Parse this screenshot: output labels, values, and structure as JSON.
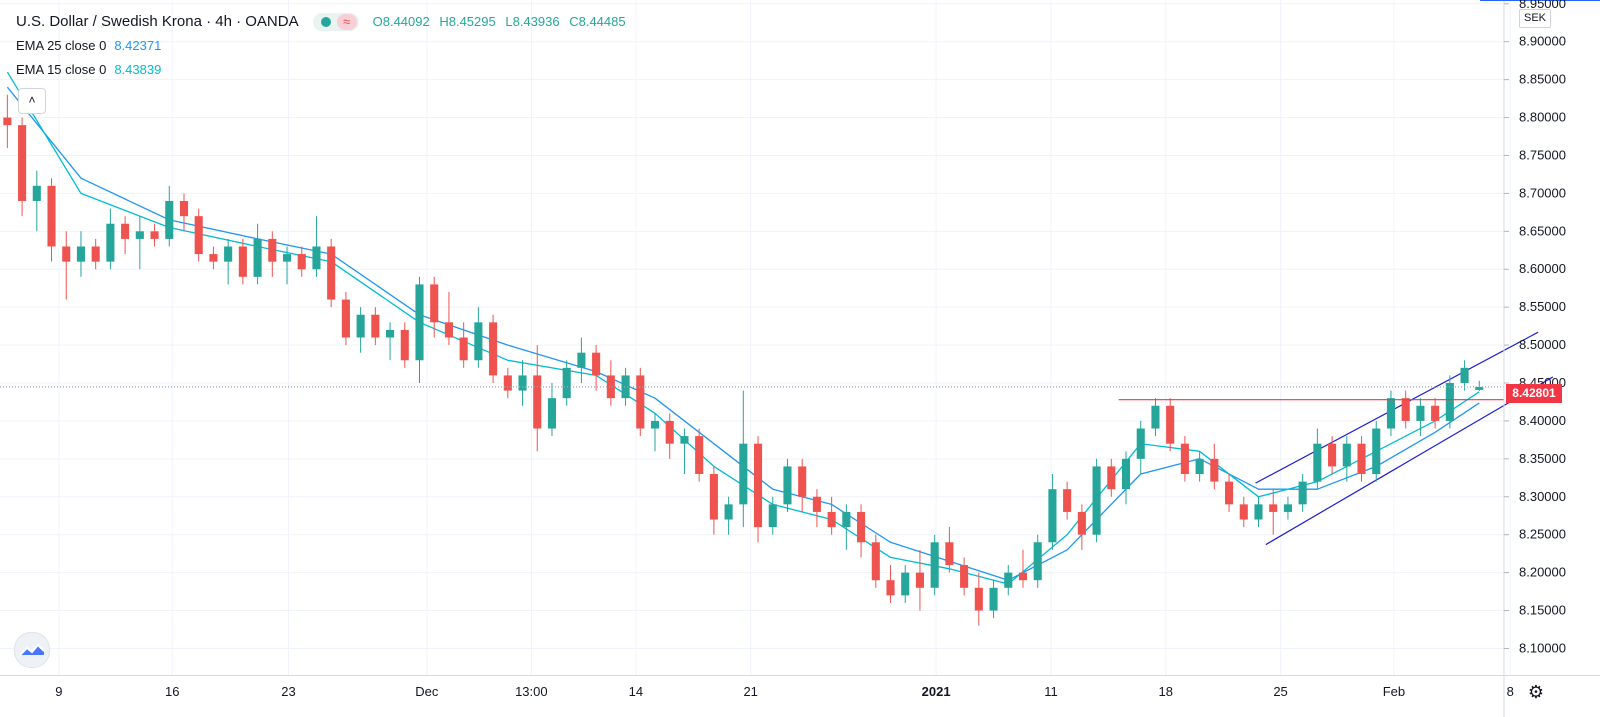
{
  "header": {
    "title": "U.S. Dollar / Swedish Krona · 4h · OANDA",
    "ohlc": {
      "open": "O8.44092",
      "high": "H8.45295",
      "low": "L8.43936",
      "close": "C8.44485"
    }
  },
  "indicators": [
    {
      "label": "EMA 25 close 0",
      "value": "8.42371",
      "color": "#2196f3"
    },
    {
      "label": "EMA 15 close 0",
      "value": "8.43839",
      "color": "#00bcd4"
    }
  ],
  "price_axis": {
    "currency": "SEK",
    "marked_price": "8.42801"
  },
  "colors": {
    "up": "#26a69a",
    "down": "#ef5350",
    "channel": "#1f1fd6",
    "horizontal_level": "#f23645",
    "dotted_price_line": "#9aa5b8"
  },
  "icons": {
    "collapse": "chevron-up-icon",
    "logo": "tradingview-logo-icon",
    "settings": "gear-icon",
    "indicator_toggle": "wave-icon"
  },
  "chart_data": {
    "type": "candlestick",
    "x_axis_type": "time",
    "x_range": [
      -0.5,
      101
    ],
    "xlabel": "",
    "ylabel": "",
    "ylim": [
      8.065,
      8.955
    ],
    "y_ticks": [
      8.95,
      8.9,
      8.85,
      8.8,
      8.75,
      8.7,
      8.65,
      8.6,
      8.55,
      8.5,
      8.45,
      8.4,
      8.35,
      8.3,
      8.25,
      8.2,
      8.15,
      8.1
    ],
    "y_tick_labels": [
      "8.95000",
      "8.90000",
      "8.85000",
      "8.80000",
      "8.75000",
      "8.70000",
      "8.65000",
      "8.60000",
      "8.55000",
      "8.50000",
      "8.45000",
      "8.40000",
      "8.35000",
      "8.30000",
      "8.25000",
      "8.20000",
      "8.15000",
      "8.10000"
    ],
    "x_ticks": [
      {
        "label": "9",
        "x": 3.5
      },
      {
        "label": "16",
        "x": 11.2
      },
      {
        "label": "23",
        "x": 19.1
      },
      {
        "label": "Dec",
        "x": 28.5
      },
      {
        "label": "13:00",
        "x": 35.6
      },
      {
        "label": "14",
        "x": 42.7
      },
      {
        "label": "21",
        "x": 50.5
      },
      {
        "label": "2021",
        "x": 63.1,
        "bold": true
      },
      {
        "label": "11",
        "x": 70.9
      },
      {
        "label": "18",
        "x": 78.7
      },
      {
        "label": "25",
        "x": 86.5
      },
      {
        "label": "Feb",
        "x": 94.2
      },
      {
        "label": "8",
        "x": 102.1
      }
    ],
    "candles": [
      {
        "x": 0,
        "o": 8.8,
        "h": 8.83,
        "l": 8.76,
        "c": 8.79
      },
      {
        "x": 1,
        "o": 8.79,
        "h": 8.8,
        "l": 8.67,
        "c": 8.69
      },
      {
        "x": 2,
        "o": 8.69,
        "h": 8.73,
        "l": 8.65,
        "c": 8.71
      },
      {
        "x": 3,
        "o": 8.71,
        "h": 8.72,
        "l": 8.61,
        "c": 8.63
      },
      {
        "x": 4,
        "o": 8.63,
        "h": 8.65,
        "l": 8.56,
        "c": 8.61
      },
      {
        "x": 5,
        "o": 8.61,
        "h": 8.65,
        "l": 8.59,
        "c": 8.63
      },
      {
        "x": 6,
        "o": 8.63,
        "h": 8.64,
        "l": 8.6,
        "c": 8.61
      },
      {
        "x": 7,
        "o": 8.61,
        "h": 8.68,
        "l": 8.6,
        "c": 8.66
      },
      {
        "x": 8,
        "o": 8.66,
        "h": 8.67,
        "l": 8.62,
        "c": 8.64
      },
      {
        "x": 9,
        "o": 8.64,
        "h": 8.67,
        "l": 8.6,
        "c": 8.65
      },
      {
        "x": 10,
        "o": 8.65,
        "h": 8.66,
        "l": 8.63,
        "c": 8.64
      },
      {
        "x": 11,
        "o": 8.64,
        "h": 8.71,
        "l": 8.63,
        "c": 8.69
      },
      {
        "x": 12,
        "o": 8.69,
        "h": 8.7,
        "l": 8.65,
        "c": 8.67
      },
      {
        "x": 13,
        "o": 8.67,
        "h": 8.68,
        "l": 8.61,
        "c": 8.62
      },
      {
        "x": 14,
        "o": 8.62,
        "h": 8.63,
        "l": 8.6,
        "c": 8.61
      },
      {
        "x": 15,
        "o": 8.61,
        "h": 8.64,
        "l": 8.58,
        "c": 8.63
      },
      {
        "x": 16,
        "o": 8.63,
        "h": 8.64,
        "l": 8.58,
        "c": 8.59
      },
      {
        "x": 17,
        "o": 8.59,
        "h": 8.66,
        "l": 8.58,
        "c": 8.64
      },
      {
        "x": 18,
        "o": 8.64,
        "h": 8.65,
        "l": 8.59,
        "c": 8.61
      },
      {
        "x": 19,
        "o": 8.61,
        "h": 8.63,
        "l": 8.58,
        "c": 8.62
      },
      {
        "x": 20,
        "o": 8.62,
        "h": 8.63,
        "l": 8.59,
        "c": 8.6
      },
      {
        "x": 21,
        "o": 8.6,
        "h": 8.67,
        "l": 8.59,
        "c": 8.63
      },
      {
        "x": 22,
        "o": 8.63,
        "h": 8.64,
        "l": 8.55,
        "c": 8.56
      },
      {
        "x": 23,
        "o": 8.56,
        "h": 8.57,
        "l": 8.5,
        "c": 8.51
      },
      {
        "x": 24,
        "o": 8.51,
        "h": 8.55,
        "l": 8.49,
        "c": 8.54
      },
      {
        "x": 25,
        "o": 8.54,
        "h": 8.55,
        "l": 8.5,
        "c": 8.51
      },
      {
        "x": 26,
        "o": 8.51,
        "h": 8.53,
        "l": 8.48,
        "c": 8.52
      },
      {
        "x": 27,
        "o": 8.52,
        "h": 8.53,
        "l": 8.47,
        "c": 8.48
      },
      {
        "x": 28,
        "o": 8.48,
        "h": 8.59,
        "l": 8.45,
        "c": 8.58
      },
      {
        "x": 29,
        "o": 8.58,
        "h": 8.59,
        "l": 8.51,
        "c": 8.53
      },
      {
        "x": 30,
        "o": 8.53,
        "h": 8.57,
        "l": 8.5,
        "c": 8.51
      },
      {
        "x": 31,
        "o": 8.51,
        "h": 8.53,
        "l": 8.47,
        "c": 8.48
      },
      {
        "x": 32,
        "o": 8.48,
        "h": 8.55,
        "l": 8.47,
        "c": 8.53
      },
      {
        "x": 33,
        "o": 8.53,
        "h": 8.54,
        "l": 8.45,
        "c": 8.46
      },
      {
        "x": 34,
        "o": 8.46,
        "h": 8.47,
        "l": 8.43,
        "c": 8.44
      },
      {
        "x": 35,
        "o": 8.44,
        "h": 8.48,
        "l": 8.42,
        "c": 8.46
      },
      {
        "x": 36,
        "o": 8.46,
        "h": 8.5,
        "l": 8.36,
        "c": 8.39
      },
      {
        "x": 37,
        "o": 8.39,
        "h": 8.45,
        "l": 8.38,
        "c": 8.43
      },
      {
        "x": 38,
        "o": 8.43,
        "h": 8.48,
        "l": 8.42,
        "c": 8.47
      },
      {
        "x": 39,
        "o": 8.47,
        "h": 8.51,
        "l": 8.45,
        "c": 8.49
      },
      {
        "x": 40,
        "o": 8.49,
        "h": 8.5,
        "l": 8.44,
        "c": 8.46
      },
      {
        "x": 41,
        "o": 8.46,
        "h": 8.48,
        "l": 8.42,
        "c": 8.43
      },
      {
        "x": 42,
        "o": 8.43,
        "h": 8.47,
        "l": 8.42,
        "c": 8.46
      },
      {
        "x": 43,
        "o": 8.46,
        "h": 8.47,
        "l": 8.38,
        "c": 8.39
      },
      {
        "x": 44,
        "o": 8.39,
        "h": 8.41,
        "l": 8.36,
        "c": 8.4
      },
      {
        "x": 45,
        "o": 8.4,
        "h": 8.41,
        "l": 8.35,
        "c": 8.37
      },
      {
        "x": 46,
        "o": 8.37,
        "h": 8.39,
        "l": 8.33,
        "c": 8.38
      },
      {
        "x": 47,
        "o": 8.38,
        "h": 8.39,
        "l": 8.32,
        "c": 8.33
      },
      {
        "x": 48,
        "o": 8.33,
        "h": 8.34,
        "l": 8.25,
        "c": 8.27
      },
      {
        "x": 49,
        "o": 8.27,
        "h": 8.3,
        "l": 8.25,
        "c": 8.29
      },
      {
        "x": 50,
        "o": 8.29,
        "h": 8.44,
        "l": 8.26,
        "c": 8.37
      },
      {
        "x": 51,
        "o": 8.37,
        "h": 8.38,
        "l": 8.24,
        "c": 8.26
      },
      {
        "x": 52,
        "o": 8.26,
        "h": 8.3,
        "l": 8.25,
        "c": 8.29
      },
      {
        "x": 53,
        "o": 8.29,
        "h": 8.35,
        "l": 8.28,
        "c": 8.34
      },
      {
        "x": 54,
        "o": 8.34,
        "h": 8.35,
        "l": 8.28,
        "c": 8.3
      },
      {
        "x": 55,
        "o": 8.3,
        "h": 8.31,
        "l": 8.26,
        "c": 8.28
      },
      {
        "x": 56,
        "o": 8.28,
        "h": 8.3,
        "l": 8.25,
        "c": 8.26
      },
      {
        "x": 57,
        "o": 8.26,
        "h": 8.29,
        "l": 8.23,
        "c": 8.28
      },
      {
        "x": 58,
        "o": 8.28,
        "h": 8.29,
        "l": 8.22,
        "c": 8.24
      },
      {
        "x": 59,
        "o": 8.24,
        "h": 8.25,
        "l": 8.18,
        "c": 8.19
      },
      {
        "x": 60,
        "o": 8.19,
        "h": 8.21,
        "l": 8.16,
        "c": 8.17
      },
      {
        "x": 61,
        "o": 8.17,
        "h": 8.21,
        "l": 8.16,
        "c": 8.2
      },
      {
        "x": 62,
        "o": 8.2,
        "h": 8.23,
        "l": 8.15,
        "c": 8.18
      },
      {
        "x": 63,
        "o": 8.18,
        "h": 8.25,
        "l": 8.17,
        "c": 8.24
      },
      {
        "x": 64,
        "o": 8.24,
        "h": 8.26,
        "l": 8.2,
        "c": 8.21
      },
      {
        "x": 65,
        "o": 8.21,
        "h": 8.22,
        "l": 8.17,
        "c": 8.18
      },
      {
        "x": 66,
        "o": 8.18,
        "h": 8.2,
        "l": 8.13,
        "c": 8.15
      },
      {
        "x": 67,
        "o": 8.15,
        "h": 8.19,
        "l": 8.14,
        "c": 8.18
      },
      {
        "x": 68,
        "o": 8.18,
        "h": 8.21,
        "l": 8.17,
        "c": 8.2
      },
      {
        "x": 69,
        "o": 8.2,
        "h": 8.23,
        "l": 8.18,
        "c": 8.19
      },
      {
        "x": 70,
        "o": 8.19,
        "h": 8.25,
        "l": 8.18,
        "c": 8.24
      },
      {
        "x": 71,
        "o": 8.24,
        "h": 8.33,
        "l": 8.23,
        "c": 8.31
      },
      {
        "x": 72,
        "o": 8.31,
        "h": 8.32,
        "l": 8.27,
        "c": 8.28
      },
      {
        "x": 73,
        "o": 8.28,
        "h": 8.29,
        "l": 8.23,
        "c": 8.25
      },
      {
        "x": 74,
        "o": 8.25,
        "h": 8.35,
        "l": 8.24,
        "c": 8.34
      },
      {
        "x": 75,
        "o": 8.34,
        "h": 8.35,
        "l": 8.3,
        "c": 8.31
      },
      {
        "x": 76,
        "o": 8.31,
        "h": 8.36,
        "l": 8.29,
        "c": 8.35
      },
      {
        "x": 77,
        "o": 8.35,
        "h": 8.4,
        "l": 8.33,
        "c": 8.39
      },
      {
        "x": 78,
        "o": 8.39,
        "h": 8.43,
        "l": 8.38,
        "c": 8.42
      },
      {
        "x": 79,
        "o": 8.42,
        "h": 8.43,
        "l": 8.36,
        "c": 8.37
      },
      {
        "x": 80,
        "o": 8.37,
        "h": 8.38,
        "l": 8.32,
        "c": 8.33
      },
      {
        "x": 81,
        "o": 8.33,
        "h": 8.36,
        "l": 8.32,
        "c": 8.35
      },
      {
        "x": 82,
        "o": 8.35,
        "h": 8.37,
        "l": 8.31,
        "c": 8.32
      },
      {
        "x": 83,
        "o": 8.32,
        "h": 8.33,
        "l": 8.28,
        "c": 8.29
      },
      {
        "x": 84,
        "o": 8.29,
        "h": 8.3,
        "l": 8.26,
        "c": 8.27
      },
      {
        "x": 85,
        "o": 8.27,
        "h": 8.3,
        "l": 8.26,
        "c": 8.29
      },
      {
        "x": 86,
        "o": 8.29,
        "h": 8.31,
        "l": 8.25,
        "c": 8.28
      },
      {
        "x": 87,
        "o": 8.28,
        "h": 8.3,
        "l": 8.27,
        "c": 8.29
      },
      {
        "x": 88,
        "o": 8.29,
        "h": 8.33,
        "l": 8.28,
        "c": 8.32
      },
      {
        "x": 89,
        "o": 8.32,
        "h": 8.39,
        "l": 8.31,
        "c": 8.37
      },
      {
        "x": 90,
        "o": 8.37,
        "h": 8.38,
        "l": 8.33,
        "c": 8.34
      },
      {
        "x": 91,
        "o": 8.34,
        "h": 8.38,
        "l": 8.32,
        "c": 8.37
      },
      {
        "x": 92,
        "o": 8.37,
        "h": 8.38,
        "l": 8.32,
        "c": 8.33
      },
      {
        "x": 93,
        "o": 8.33,
        "h": 8.4,
        "l": 8.32,
        "c": 8.39
      },
      {
        "x": 94,
        "o": 8.39,
        "h": 8.44,
        "l": 8.38,
        "c": 8.43
      },
      {
        "x": 95,
        "o": 8.43,
        "h": 8.44,
        "l": 8.39,
        "c": 8.4
      },
      {
        "x": 96,
        "o": 8.4,
        "h": 8.43,
        "l": 8.38,
        "c": 8.42
      },
      {
        "x": 97,
        "o": 8.42,
        "h": 8.43,
        "l": 8.39,
        "c": 8.4
      },
      {
        "x": 98,
        "o": 8.4,
        "h": 8.46,
        "l": 8.39,
        "c": 8.45
      },
      {
        "x": 99,
        "o": 8.45,
        "h": 8.48,
        "l": 8.44,
        "c": 8.47
      },
      {
        "x": 100,
        "o": 8.44092,
        "h": 8.45295,
        "l": 8.43936,
        "c": 8.44485
      }
    ],
    "ema_series": [
      {
        "name": "EMA 25 close 0",
        "color": "#2196f3",
        "points": [
          [
            0,
            8.84
          ],
          [
            5,
            8.72
          ],
          [
            11,
            8.665
          ],
          [
            17,
            8.64
          ],
          [
            22,
            8.62
          ],
          [
            28,
            8.54
          ],
          [
            34,
            8.5
          ],
          [
            40,
            8.465
          ],
          [
            44,
            8.43
          ],
          [
            48,
            8.37
          ],
          [
            52,
            8.31
          ],
          [
            56,
            8.29
          ],
          [
            60,
            8.24
          ],
          [
            64,
            8.215
          ],
          [
            68,
            8.19
          ],
          [
            72,
            8.23
          ],
          [
            77,
            8.33
          ],
          [
            81,
            8.35
          ],
          [
            85,
            8.31
          ],
          [
            89,
            8.31
          ],
          [
            93,
            8.34
          ],
          [
            97,
            8.385
          ],
          [
            100,
            8.42371
          ]
        ]
      },
      {
        "name": "EMA 15 close 0",
        "color": "#00bcd4",
        "points": [
          [
            0,
            8.86
          ],
          [
            5,
            8.7
          ],
          [
            11,
            8.655
          ],
          [
            17,
            8.63
          ],
          [
            22,
            8.61
          ],
          [
            28,
            8.53
          ],
          [
            34,
            8.48
          ],
          [
            40,
            8.46
          ],
          [
            44,
            8.41
          ],
          [
            48,
            8.34
          ],
          [
            52,
            8.29
          ],
          [
            56,
            8.27
          ],
          [
            60,
            8.22
          ],
          [
            64,
            8.205
          ],
          [
            68,
            8.185
          ],
          [
            72,
            8.25
          ],
          [
            77,
            8.37
          ],
          [
            81,
            8.36
          ],
          [
            85,
            8.3
          ],
          [
            89,
            8.32
          ],
          [
            93,
            8.36
          ],
          [
            97,
            8.4
          ],
          [
            100,
            8.43839
          ]
        ]
      }
    ],
    "channel": {
      "color": "#1f1fd6",
      "lower": [
        [
          85.5,
          8.237
        ],
        [
          105,
          8.458
        ]
      ],
      "upper": [
        [
          84.8,
          8.318
        ],
        [
          104,
          8.517
        ]
      ]
    },
    "horizontal_level": {
      "value": 8.42801,
      "x_start": 75.5,
      "color": "#f23645"
    },
    "last_price": 8.44485,
    "grid": true
  }
}
